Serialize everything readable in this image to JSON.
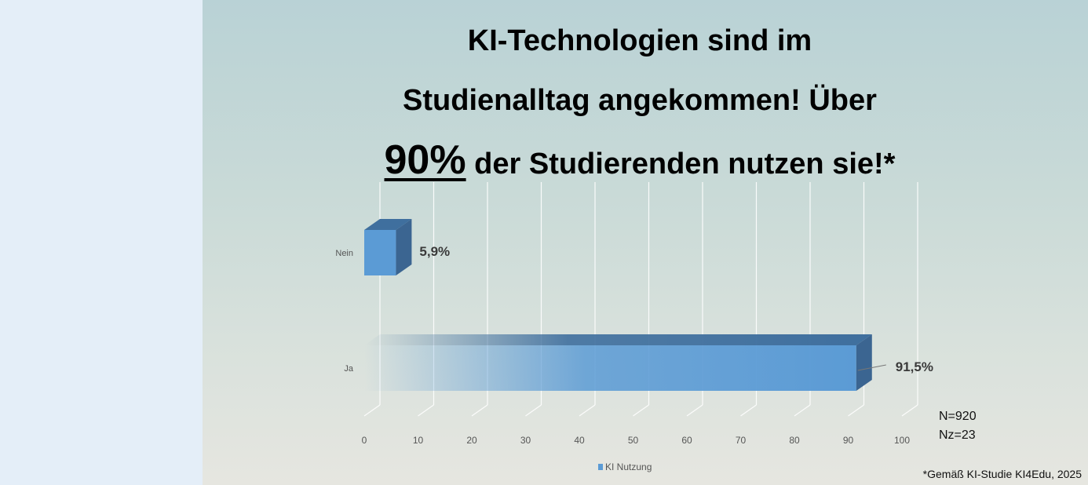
{
  "headline": {
    "line1": "KI-Technologien sind im",
    "line2": "Studienalltag angekommen! Über",
    "line3_big": "90%",
    "line3_rest": " der Studierenden nutzen sie!*"
  },
  "sample_info": {
    "n": "N=920",
    "nz": "Nz=23"
  },
  "source_note": "*Gemäß KI-Studie KI4Edu, 2025",
  "colors": {
    "bar_front": "#5b9bd5",
    "bar_top": "#3f6f9e",
    "bar_side": "#3b6591",
    "gridline": "#ffffff",
    "headline": "#000000"
  },
  "chart_data": {
    "type": "bar",
    "orientation": "horizontal",
    "style": "3d",
    "categories": [
      "Nein",
      "Ja"
    ],
    "series": [
      {
        "name": "KI Nutzung",
        "values": [
          5.9,
          91.5
        ]
      }
    ],
    "data_labels": [
      "5,9%",
      "91,5%"
    ],
    "xlim": [
      0,
      100
    ],
    "xticks": [
      0,
      10,
      20,
      30,
      40,
      50,
      60,
      70,
      80,
      90,
      100
    ],
    "grid": true,
    "legend_position": "bottom"
  }
}
